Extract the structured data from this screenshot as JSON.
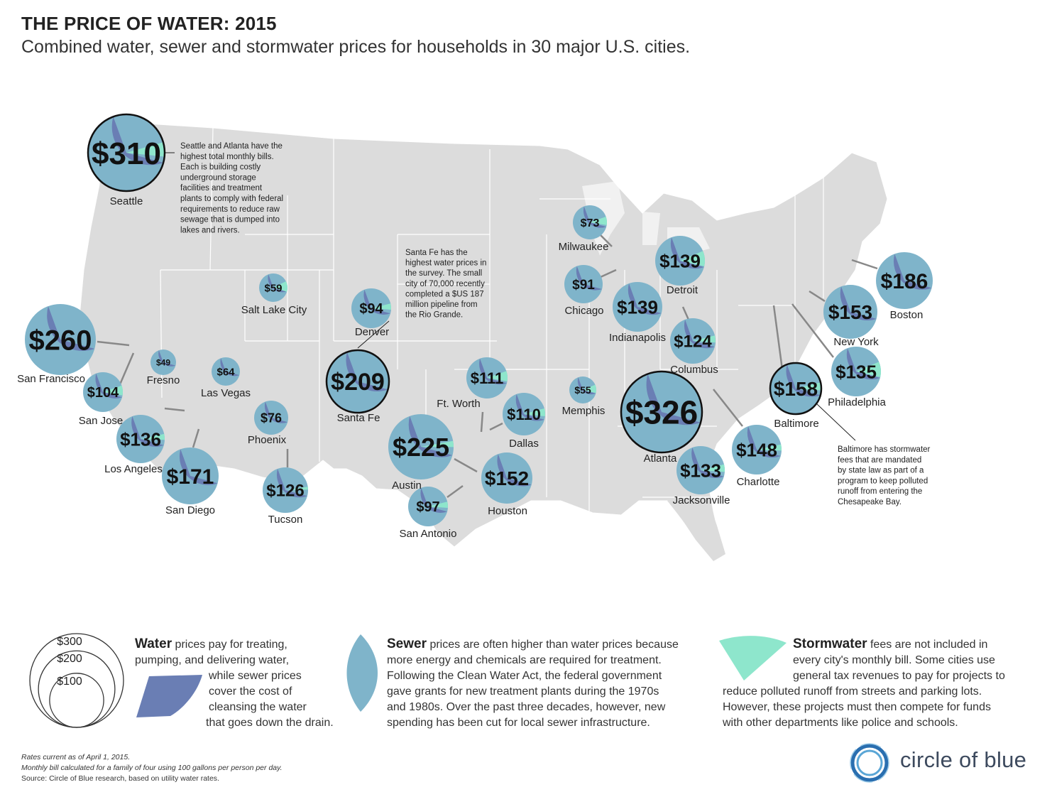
{
  "title": "THE PRICE OF WATER: 2015",
  "subtitle": "Combined water, sewer and stormwater prices for households in 30 major U.S. cities.",
  "colors": {
    "map": "#dcdcdc",
    "map_border": "#ffffff",
    "water": "#6a7eb4",
    "sewer": "#7fb4ca",
    "stormwater": "#8ee6cc",
    "leader": "#888888"
  },
  "cities": [
    {
      "name": "Seattle",
      "price": "$310",
      "value": 310,
      "stormwater_share": 0.06,
      "highlight": true
    },
    {
      "name": "San Francisco",
      "price": "$260",
      "value": 260,
      "stormwater_share": 0.0
    },
    {
      "name": "San Jose",
      "price": "$104",
      "value": 104,
      "stormwater_share": 0.08
    },
    {
      "name": "Fresno",
      "price": "$49",
      "value": 49,
      "stormwater_share": 0.0
    },
    {
      "name": "Los Angeles",
      "price": "$136",
      "value": 136,
      "stormwater_share": 0.04
    },
    {
      "name": "San Diego",
      "price": "$171",
      "value": 171,
      "stormwater_share": 0.0
    },
    {
      "name": "Las Vegas",
      "price": "$64",
      "value": 64,
      "stormwater_share": 0.0
    },
    {
      "name": "Salt Lake City",
      "price": "$59",
      "value": 59,
      "stormwater_share": 0.12
    },
    {
      "name": "Phoenix",
      "price": "$76",
      "value": 76,
      "stormwater_share": 0.0
    },
    {
      "name": "Tucson",
      "price": "$126",
      "value": 126,
      "stormwater_share": 0.02
    },
    {
      "name": "Denver",
      "price": "$94",
      "value": 94,
      "stormwater_share": 0.05
    },
    {
      "name": "Santa Fe",
      "price": "$209",
      "value": 209,
      "stormwater_share": 0.0,
      "highlight": true
    },
    {
      "name": "Ft. Worth",
      "price": "$111",
      "value": 111,
      "stormwater_share": 0.08
    },
    {
      "name": "Dallas",
      "price": "$110",
      "value": 110,
      "stormwater_share": 0.06
    },
    {
      "name": "Austin",
      "price": "$225",
      "value": 225,
      "stormwater_share": 0.03
    },
    {
      "name": "Houston",
      "price": "$152",
      "value": 152,
      "stormwater_share": 0.0
    },
    {
      "name": "San Antonio",
      "price": "$97",
      "value": 97,
      "stormwater_share": 0.05
    },
    {
      "name": "Milwaukee",
      "price": "$73",
      "value": 73,
      "stormwater_share": 0.08
    },
    {
      "name": "Chicago",
      "price": "$91",
      "value": 91,
      "stormwater_share": 0.0
    },
    {
      "name": "Detroit",
      "price": "$139",
      "value": 139,
      "stormwater_share": 0.1
    },
    {
      "name": "Indianapolis",
      "price": "$139",
      "value": 139,
      "stormwater_share": 0.0
    },
    {
      "name": "Columbus",
      "price": "$124",
      "value": 124,
      "stormwater_share": 0.05
    },
    {
      "name": "Memphis",
      "price": "$55",
      "value": 55,
      "stormwater_share": 0.1
    },
    {
      "name": "Atlanta",
      "price": "$326",
      "value": 326,
      "stormwater_share": 0.0,
      "highlight": true
    },
    {
      "name": "Jacksonville",
      "price": "$133",
      "value": 133,
      "stormwater_share": 0.05
    },
    {
      "name": "Charlotte",
      "price": "$148",
      "value": 148,
      "stormwater_share": 0.04
    },
    {
      "name": "Baltimore",
      "price": "$158",
      "value": 158,
      "stormwater_share": 0.05,
      "highlight": true
    },
    {
      "name": "Philadelphia",
      "price": "$135",
      "value": 135,
      "stormwater_share": 0.1
    },
    {
      "name": "New York",
      "price": "$153",
      "value": 153,
      "stormwater_share": 0.0
    },
    {
      "name": "Boston",
      "price": "$186",
      "value": 186,
      "stormwater_share": 0.0
    }
  ],
  "annotations": {
    "seattle": [
      "Seattle and Atlanta have the",
      "highest total monthly bills.",
      "Each is building costly",
      "underground storage",
      "facilities and treatment",
      "plants to comply with federal",
      "requirements to reduce raw",
      "sewage that is dumped into",
      "lakes and rivers."
    ],
    "santa_fe": [
      "Santa Fe has the",
      "highest water prices in",
      "the survey. The small",
      "city of 70,000 recently",
      "completed a $US 187",
      "million pipeline from",
      "the Rio Grande."
    ],
    "baltimore": [
      "Baltimore has stormwater",
      "fees that are mandated",
      "by state law as part of a",
      "program to keep polluted",
      "runoff from entering the",
      "Chesapeake Bay."
    ]
  },
  "size_legend": [
    {
      "label": "$300",
      "value": 300
    },
    {
      "label": "$200",
      "value": 200
    },
    {
      "label": "$100",
      "value": 100
    }
  ],
  "legend": {
    "water_heading": "Water",
    "water_lines": [
      "prices pay for treating,",
      "pumping, and delivering water,",
      "while sewer prices",
      "cover the cost of",
      "cleansing the water",
      "that goes down the drain."
    ],
    "sewer_heading": "Sewer",
    "sewer_lines": [
      "prices are often higher than water prices because",
      "more energy and chemicals are required for treatment.",
      "Following the Clean Water Act, the federal government",
      "gave grants for new treatment plants during the 1970s",
      "and 1980s. Over the past three decades, however, new",
      "spending has been cut for local sewer infrastructure."
    ],
    "stormwater_heading": "Stormwater",
    "stormwater_lines": [
      "fees are not included in",
      "every city's monthly bill. Some cities use",
      "general tax revenues to pay for projects to",
      "reduce polluted runoff from streets and parking lots.",
      "However, these projects must then compete for funds",
      "with other departments like police and schools."
    ]
  },
  "footnotes": {
    "line1": "Rates current as of April 1, 2015.",
    "line2": "Monthly bill calculated for a family of four using 100 gallons per person per day.",
    "line3": "Source: Circle of Blue research, based on utility water rates."
  },
  "logo": "circle of blue"
}
